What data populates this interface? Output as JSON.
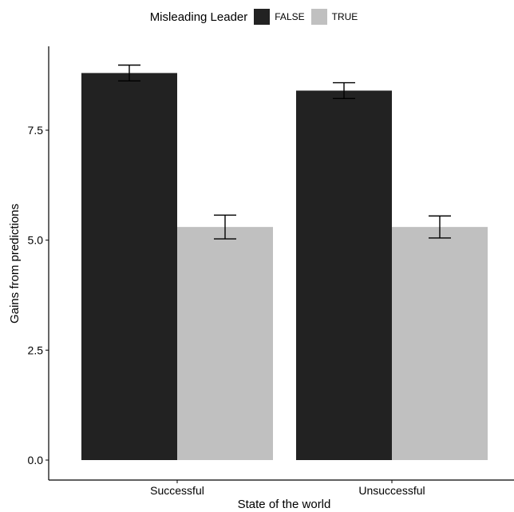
{
  "chart_data": {
    "type": "bar",
    "title": "",
    "xlabel": "State of the world",
    "ylabel": "Gains from predictions",
    "categories": [
      "Successful",
      "Unsuccessful"
    ],
    "ylim": [
      0,
      9.1
    ],
    "yticks": [
      0.0,
      2.5,
      5.0,
      7.5
    ],
    "ytick_labels": [
      "0.0",
      "2.5",
      "5.0",
      "7.5"
    ],
    "legend": {
      "title": "Misleading Leader",
      "position": "top",
      "items": [
        "FALSE",
        "TRUE"
      ]
    },
    "grid": false,
    "series": [
      {
        "name": "FALSE",
        "color": "#222222",
        "values": [
          8.8,
          8.4
        ],
        "err_low": [
          8.62,
          8.22
        ],
        "err_high": [
          8.98,
          8.58
        ]
      },
      {
        "name": "TRUE",
        "color": "#c0c0c0",
        "values": [
          5.3,
          5.3
        ],
        "err_low": [
          5.03,
          5.05
        ],
        "err_high": [
          5.57,
          5.55
        ]
      }
    ]
  }
}
